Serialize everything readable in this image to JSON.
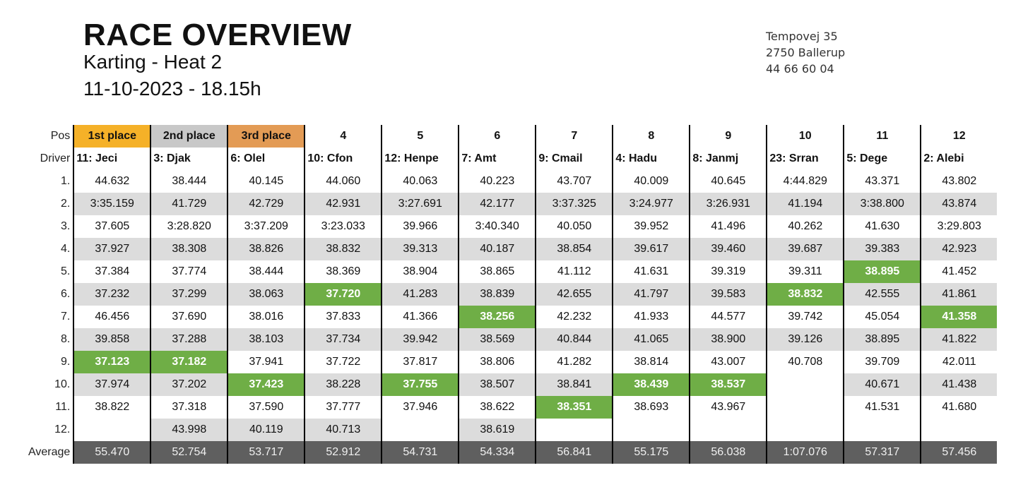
{
  "header": {
    "title": "RACE OVERVIEW",
    "subtitle": "Karting - Heat 2",
    "datetime": "11-10-2023 - 18.15h"
  },
  "address": {
    "street": "Tempovej 35",
    "city": "2750 Ballerup",
    "phone": "44 66 60 04"
  },
  "table": {
    "pos_label": "Pos",
    "driver_label": "Driver",
    "average_label": "Average",
    "positions": [
      "1st place",
      "2nd place",
      "3rd place",
      "4",
      "5",
      "6",
      "7",
      "8",
      "9",
      "10",
      "11",
      "12"
    ],
    "drivers": [
      "11: Jeci",
      "3: Djak",
      "6: Olel",
      "10: Cfon",
      "12: Henpe",
      "7: Amt",
      "9: Cmail",
      "4: Hadu",
      "8: Janmj",
      "23: Srran",
      "5: Dege",
      "2: Alebi"
    ],
    "laps": [
      {
        "label": "1.",
        "times": [
          "44.632",
          "38.444",
          "40.145",
          "44.060",
          "40.063",
          "40.223",
          "43.707",
          "40.009",
          "40.645",
          "4:44.829",
          "43.371",
          "43.802"
        ]
      },
      {
        "label": "2.",
        "times": [
          "3:35.159",
          "41.729",
          "42.729",
          "42.931",
          "3:27.691",
          "42.177",
          "3:37.325",
          "3:24.977",
          "3:26.931",
          "41.194",
          "3:38.800",
          "43.874"
        ]
      },
      {
        "label": "3.",
        "times": [
          "37.605",
          "3:28.820",
          "3:37.209",
          "3:23.033",
          "39.966",
          "3:40.340",
          "40.050",
          "39.952",
          "41.496",
          "40.262",
          "41.630",
          "3:29.803"
        ]
      },
      {
        "label": "4.",
        "times": [
          "37.927",
          "38.308",
          "38.826",
          "38.832",
          "39.313",
          "40.187",
          "38.854",
          "39.617",
          "39.460",
          "39.687",
          "39.383",
          "42.923"
        ]
      },
      {
        "label": "5.",
        "times": [
          "37.384",
          "37.774",
          "38.444",
          "38.369",
          "38.904",
          "38.865",
          "41.112",
          "41.631",
          "39.319",
          "39.311",
          "38.895",
          "41.452"
        ]
      },
      {
        "label": "6.",
        "times": [
          "37.232",
          "37.299",
          "38.063",
          "37.720",
          "41.283",
          "38.839",
          "42.655",
          "41.797",
          "39.583",
          "38.832",
          "42.555",
          "41.861"
        ]
      },
      {
        "label": "7.",
        "times": [
          "46.456",
          "37.690",
          "38.016",
          "37.833",
          "41.366",
          "38.256",
          "42.232",
          "41.933",
          "44.577",
          "39.742",
          "45.054",
          "41.358"
        ]
      },
      {
        "label": "8.",
        "times": [
          "39.858",
          "37.288",
          "38.103",
          "37.734",
          "39.942",
          "38.569",
          "40.844",
          "41.065",
          "38.900",
          "39.126",
          "38.895",
          "41.822"
        ]
      },
      {
        "label": "9.",
        "times": [
          "37.123",
          "37.182",
          "37.941",
          "37.722",
          "37.817",
          "38.806",
          "41.282",
          "38.814",
          "43.007",
          "40.708",
          "39.709",
          "42.011"
        ]
      },
      {
        "label": "10.",
        "times": [
          "37.974",
          "37.202",
          "37.423",
          "38.228",
          "37.755",
          "38.507",
          "38.841",
          "38.439",
          "38.537",
          "",
          "40.671",
          "41.438"
        ]
      },
      {
        "label": "11.",
        "times": [
          "38.822",
          "37.318",
          "37.590",
          "37.777",
          "37.946",
          "38.622",
          "38.351",
          "38.693",
          "43.967",
          "",
          "41.531",
          "41.680"
        ]
      },
      {
        "label": "12.",
        "times": [
          "",
          "43.998",
          "40.119",
          "40.713",
          "",
          "38.619",
          "",
          "",
          "",
          "",
          "",
          ""
        ]
      }
    ],
    "best_laps": [
      {
        "lap": 9,
        "col": 1
      },
      {
        "lap": 9,
        "col": 2
      },
      {
        "lap": 10,
        "col": 3
      },
      {
        "lap": 6,
        "col": 4
      },
      {
        "lap": 10,
        "col": 5
      },
      {
        "lap": 7,
        "col": 6
      },
      {
        "lap": 11,
        "col": 7
      },
      {
        "lap": 10,
        "col": 8
      },
      {
        "lap": 10,
        "col": 9
      },
      {
        "lap": 6,
        "col": 10
      },
      {
        "lap": 5,
        "col": 11
      },
      {
        "lap": 7,
        "col": 12
      }
    ],
    "averages": [
      "55.470",
      "52.754",
      "53.717",
      "52.912",
      "54.731",
      "54.334",
      "56.841",
      "55.175",
      "56.038",
      "1:07.076",
      "57.317",
      "57.456"
    ],
    "colors": {
      "gold": "#f5b128",
      "silver": "#c8c8c8",
      "bronze": "#e39b55",
      "best_lap": "#6fae46",
      "shade": "#dcdcdc",
      "average": "#5f5f5f"
    }
  }
}
